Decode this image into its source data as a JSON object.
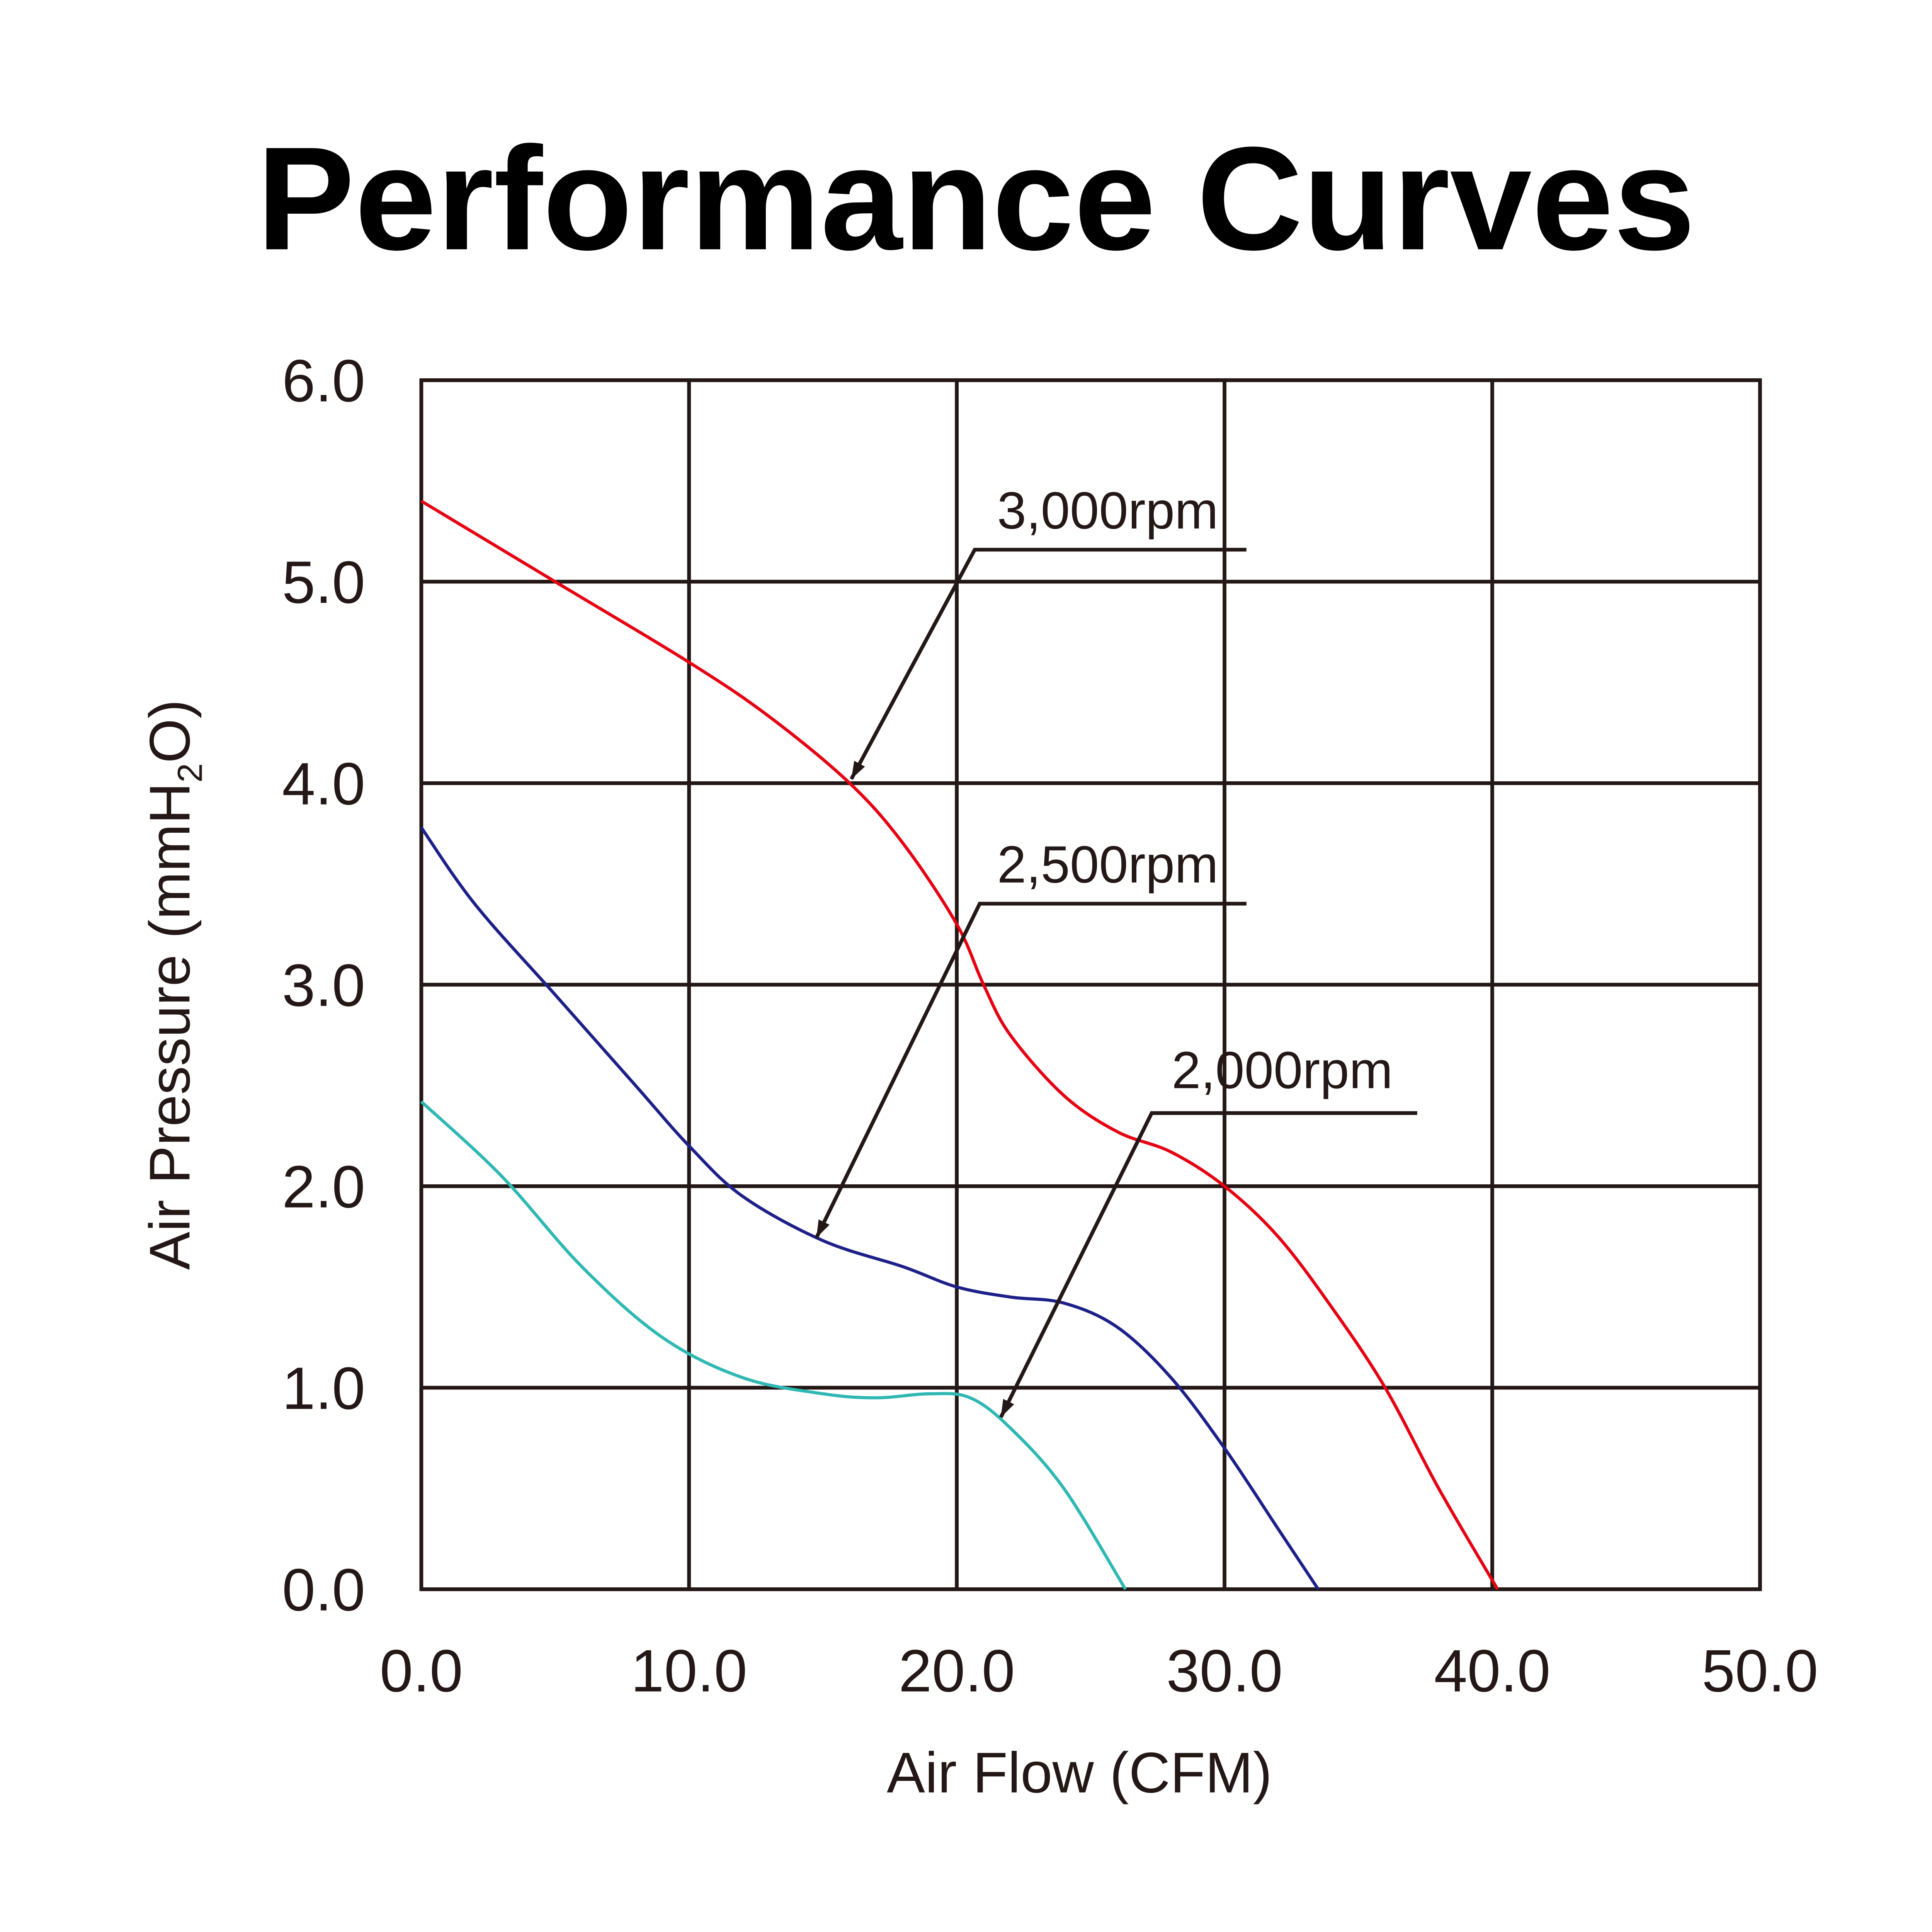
{
  "chart_data": {
    "type": "line",
    "title": "Performance Curves",
    "xlabel": "Air Flow (CFM)",
    "ylabel": "Air Pressure (mmH2O)",
    "ylabel_parts": {
      "main": "Air Pressure (mmH",
      "sub": "2",
      "end": "O)"
    },
    "xlim": [
      0,
      50
    ],
    "ylim": [
      0,
      6
    ],
    "grid": true,
    "xticks": [
      "0.0",
      "10.0",
      "20.0",
      "30.0",
      "40.0",
      "50.0"
    ],
    "yticks": [
      "0.0",
      "1.0",
      "2.0",
      "3.0",
      "4.0",
      "5.0",
      "6.0"
    ],
    "series": [
      {
        "name": "3,000rpm",
        "color": "#e60012",
        "x": [
          0,
          5,
          10,
          13,
          16,
          18,
          20,
          21,
          22,
          24,
          26,
          28,
          30,
          32,
          34,
          36,
          38,
          40.2
        ],
        "y": [
          5.4,
          5.0,
          4.6,
          4.33,
          4.0,
          3.7,
          3.3,
          3.0,
          2.75,
          2.45,
          2.27,
          2.17,
          2.0,
          1.75,
          1.4,
          1.0,
          0.5,
          0
        ]
      },
      {
        "name": "2,500rpm",
        "color": "#1d2088",
        "x": [
          0,
          2,
          5,
          8,
          10,
          12,
          15,
          18,
          20,
          22,
          24,
          26,
          28,
          30,
          32,
          33.5
        ],
        "y": [
          3.78,
          3.4,
          2.95,
          2.5,
          2.2,
          1.95,
          1.73,
          1.6,
          1.5,
          1.45,
          1.42,
          1.3,
          1.05,
          0.7,
          0.3,
          0
        ]
      },
      {
        "name": "2,000rpm",
        "color": "#2fb8b3",
        "x": [
          0,
          3,
          6,
          9,
          12,
          15,
          17,
          19,
          20.5,
          22,
          24,
          26.3
        ],
        "y": [
          2.42,
          2.05,
          1.6,
          1.25,
          1.05,
          0.97,
          0.95,
          0.97,
          0.95,
          0.8,
          0.5,
          0
        ]
      }
    ]
  }
}
